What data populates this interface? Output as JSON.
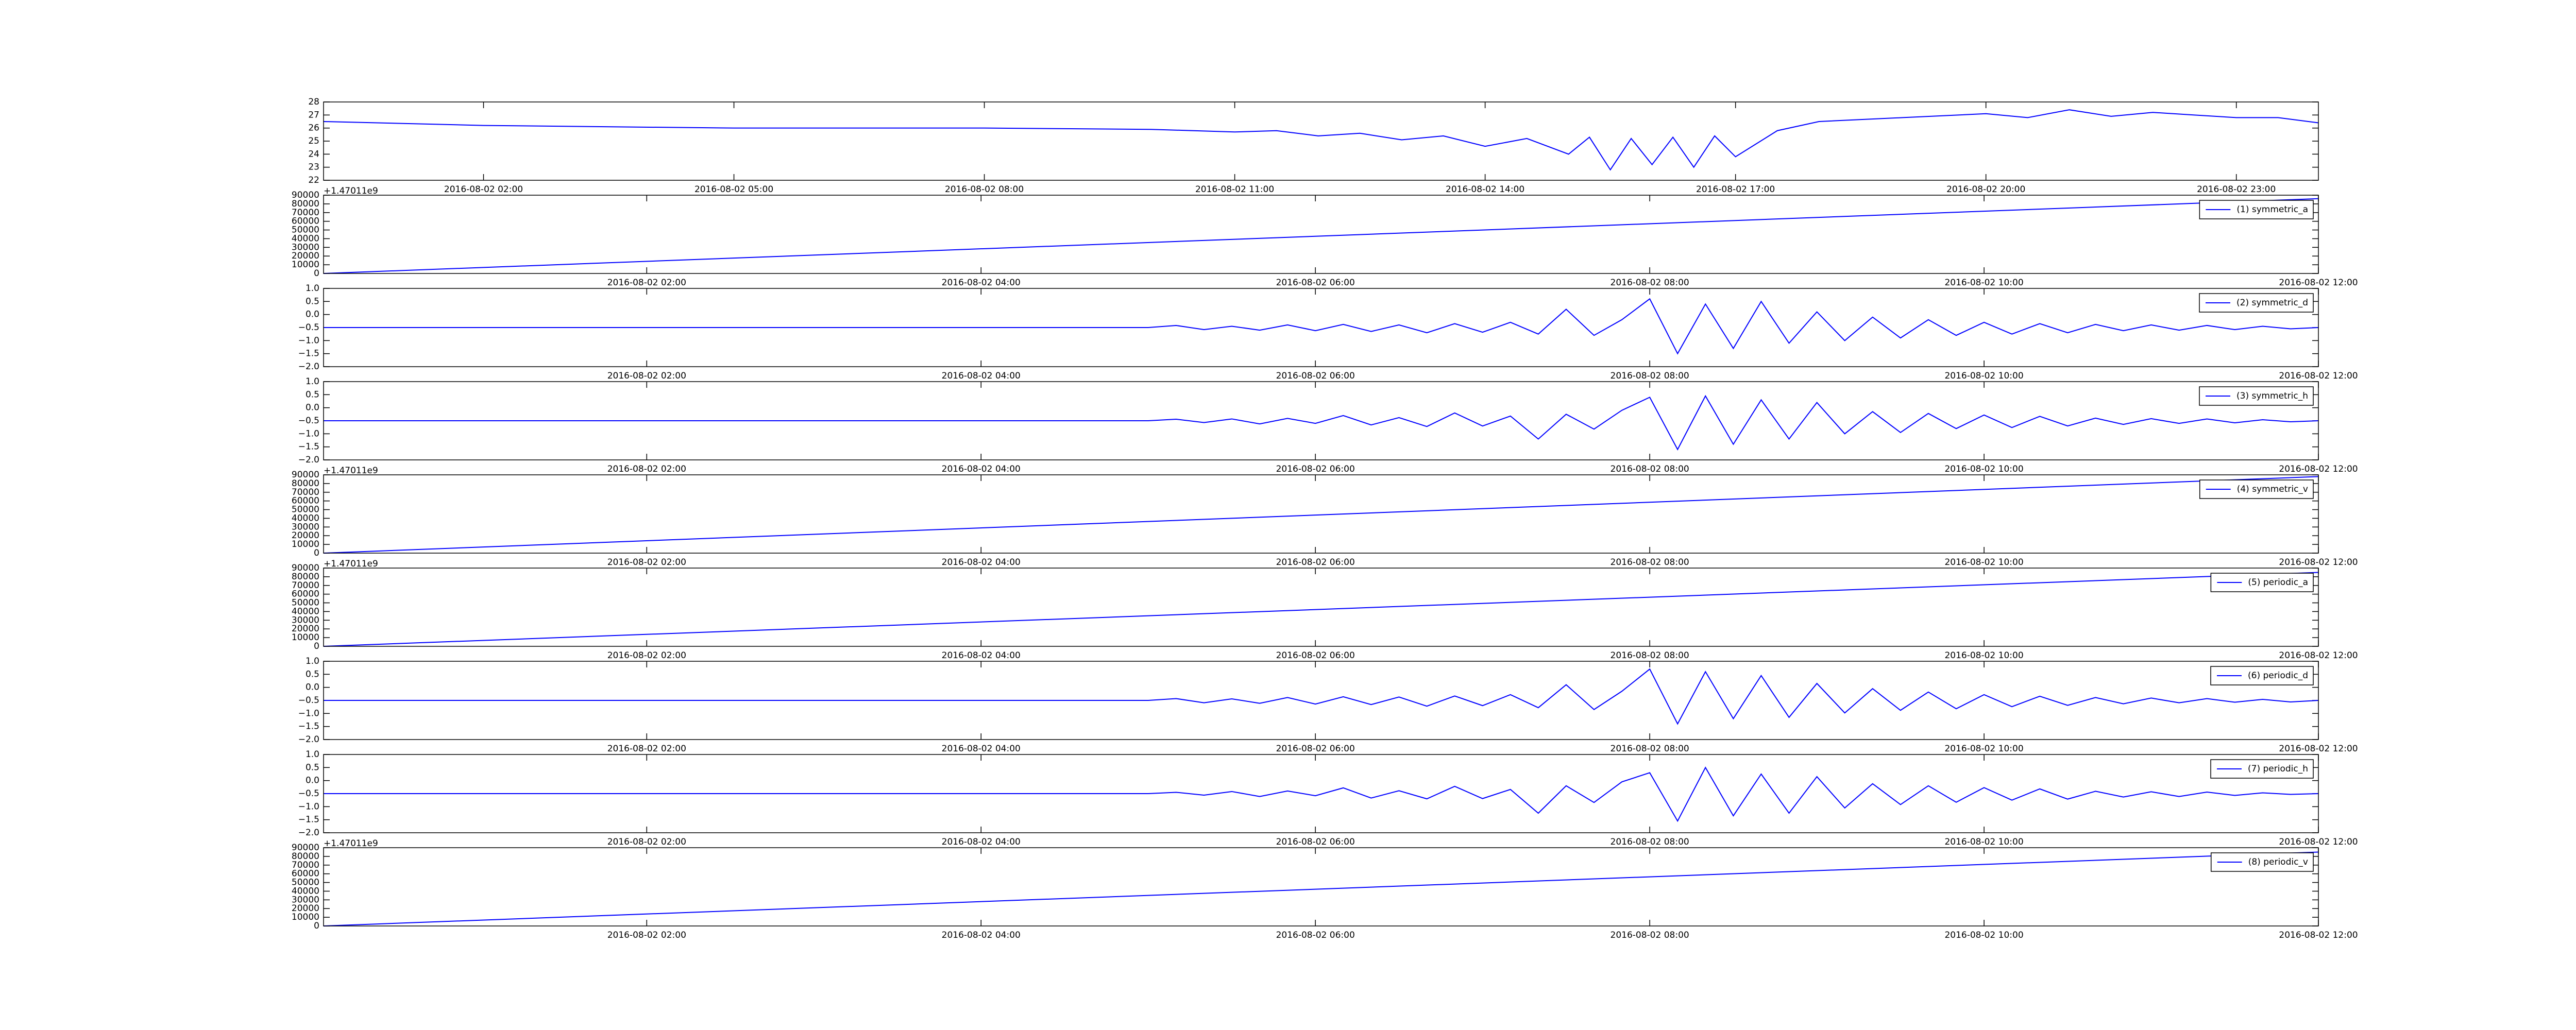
{
  "chart_data": [
    {
      "type": "line",
      "color": "#0000ff",
      "x": [
        "2016-08-02 00:05",
        "2016-08-02 02:00",
        "2016-08-02 05:00",
        "2016-08-02 08:00",
        "2016-08-02 10:00",
        "2016-08-02 11:00",
        "2016-08-02 11:30",
        "2016-08-02 12:00",
        "2016-08-02 12:30",
        "2016-08-02 13:00",
        "2016-08-02 13:30",
        "2016-08-02 14:00",
        "2016-08-02 14:30",
        "2016-08-02 15:00",
        "2016-08-02 15:15",
        "2016-08-02 15:30",
        "2016-08-02 15:45",
        "2016-08-02 16:00",
        "2016-08-02 16:15",
        "2016-08-02 16:30",
        "2016-08-02 16:45",
        "2016-08-02 17:00",
        "2016-08-02 17:30",
        "2016-08-02 18:00",
        "2016-08-02 19:00",
        "2016-08-02 20:00",
        "2016-08-02 20:30",
        "2016-08-02 21:00",
        "2016-08-02 21:30",
        "2016-08-02 22:00",
        "2016-08-02 22:30",
        "2016-08-02 23:00",
        "2016-08-02 23:30",
        "2016-08-02 23:59"
      ],
      "values": [
        26.5,
        26.2,
        26.0,
        26.0,
        25.9,
        25.7,
        25.8,
        25.4,
        25.6,
        25.1,
        25.4,
        24.6,
        25.2,
        24.0,
        25.3,
        22.8,
        25.2,
        23.2,
        25.3,
        23.0,
        25.4,
        23.8,
        25.8,
        26.5,
        26.8,
        27.1,
        26.8,
        27.4,
        26.9,
        27.2,
        27.0,
        26.8,
        26.8,
        26.4
      ],
      "xlim": [
        "2016-08-02 00:05",
        "2016-08-02 23:59"
      ],
      "xticks": [
        "2016-08-02 02:00",
        "2016-08-02 05:00",
        "2016-08-02 08:00",
        "2016-08-02 11:00",
        "2016-08-02 14:00",
        "2016-08-02 17:00",
        "2016-08-02 20:00",
        "2016-08-02 23:00"
      ],
      "ylim": [
        22,
        28
      ],
      "yticks": [
        22,
        23,
        24,
        25,
        26,
        27,
        28
      ]
    },
    {
      "type": "line",
      "offset_text": "+1.47011e9",
      "legend": "upper right",
      "x": [
        "2016-08-02 00:04",
        "2016-08-02 12:00"
      ],
      "series": [
        {
          "name": "(1) symmetric_a",
          "color": "#0000ff",
          "values": [
            0,
            86000
          ]
        }
      ],
      "xlim": [
        "2016-08-02 00:04",
        "2016-08-02 12:00"
      ],
      "xticks": [
        "2016-08-02 02:00",
        "2016-08-02 04:00",
        "2016-08-02 06:00",
        "2016-08-02 08:00",
        "2016-08-02 10:00",
        "2016-08-02 12:00"
      ],
      "ylim": [
        0,
        90000
      ],
      "yticks": [
        0,
        10000,
        20000,
        30000,
        40000,
        50000,
        60000,
        70000,
        80000,
        90000
      ]
    },
    {
      "type": "line",
      "legend": "upper right",
      "x": [
        "2016-08-02 00:04",
        "2016-08-02 05:00",
        "2016-08-02 05:10",
        "2016-08-02 05:20",
        "2016-08-02 05:30",
        "2016-08-02 05:40",
        "2016-08-02 05:50",
        "2016-08-02 06:00",
        "2016-08-02 06:10",
        "2016-08-02 06:20",
        "2016-08-02 06:30",
        "2016-08-02 06:40",
        "2016-08-02 06:50",
        "2016-08-02 07:00",
        "2016-08-02 07:10",
        "2016-08-02 07:20",
        "2016-08-02 07:30",
        "2016-08-02 07:40",
        "2016-08-02 07:50",
        "2016-08-02 08:00",
        "2016-08-02 08:10",
        "2016-08-02 08:20",
        "2016-08-02 08:30",
        "2016-08-02 08:40",
        "2016-08-02 08:50",
        "2016-08-02 09:00",
        "2016-08-02 09:10",
        "2016-08-02 09:20",
        "2016-08-02 09:30",
        "2016-08-02 09:40",
        "2016-08-02 09:50",
        "2016-08-02 10:00",
        "2016-08-02 10:10",
        "2016-08-02 10:20",
        "2016-08-02 10:30",
        "2016-08-02 10:40",
        "2016-08-02 10:50",
        "2016-08-02 11:00",
        "2016-08-02 11:10",
        "2016-08-02 11:20",
        "2016-08-02 11:30",
        "2016-08-02 11:40",
        "2016-08-02 11:50",
        "2016-08-02 12:00"
      ],
      "series": [
        {
          "name": "(2) symmetric_d",
          "color": "#0000ff",
          "values": [
            -0.5,
            -0.5,
            -0.42,
            -0.58,
            -0.45,
            -0.6,
            -0.4,
            -0.62,
            -0.38,
            -0.65,
            -0.4,
            -0.7,
            -0.35,
            -0.68,
            -0.3,
            -0.75,
            0.2,
            -0.8,
            -0.2,
            0.6,
            -1.5,
            0.4,
            -1.3,
            0.5,
            -1.1,
            0.1,
            -1.0,
            -0.1,
            -0.9,
            -0.2,
            -0.8,
            -0.3,
            -0.75,
            -0.35,
            -0.7,
            -0.38,
            -0.62,
            -0.4,
            -0.6,
            -0.42,
            -0.58,
            -0.45,
            -0.55,
            -0.5
          ]
        }
      ],
      "xlim": [
        "2016-08-02 00:04",
        "2016-08-02 12:00"
      ],
      "xticks": [
        "2016-08-02 02:00",
        "2016-08-02 04:00",
        "2016-08-02 06:00",
        "2016-08-02 08:00",
        "2016-08-02 10:00",
        "2016-08-02 12:00"
      ],
      "ylim": [
        -2,
        1
      ],
      "yticks": [
        {
          "value": -2,
          "label": "−2.0"
        },
        {
          "value": -1.5,
          "label": "−1.5"
        },
        {
          "value": -1,
          "label": "−1.0"
        },
        {
          "value": -0.5,
          "label": "−0.5"
        },
        {
          "value": 0,
          "label": "0.0"
        },
        0.5,
        {
          "value": 1,
          "label": "1.0"
        }
      ]
    },
    {
      "type": "line",
      "legend": "upper right",
      "x": [
        "2016-08-02 00:04",
        "2016-08-02 05:00",
        "2016-08-02 05:10",
        "2016-08-02 05:20",
        "2016-08-02 05:30",
        "2016-08-02 05:40",
        "2016-08-02 05:50",
        "2016-08-02 06:00",
        "2016-08-02 06:10",
        "2016-08-02 06:20",
        "2016-08-02 06:30",
        "2016-08-02 06:40",
        "2016-08-02 06:50",
        "2016-08-02 07:00",
        "2016-08-02 07:10",
        "2016-08-02 07:20",
        "2016-08-02 07:30",
        "2016-08-02 07:40",
        "2016-08-02 07:50",
        "2016-08-02 08:00",
        "2016-08-02 08:10",
        "2016-08-02 08:20",
        "2016-08-02 08:30",
        "2016-08-02 08:40",
        "2016-08-02 08:50",
        "2016-08-02 09:00",
        "2016-08-02 09:10",
        "2016-08-02 09:20",
        "2016-08-02 09:30",
        "2016-08-02 09:40",
        "2016-08-02 09:50",
        "2016-08-02 10:00",
        "2016-08-02 10:10",
        "2016-08-02 10:20",
        "2016-08-02 10:30",
        "2016-08-02 10:40",
        "2016-08-02 10:50",
        "2016-08-02 11:00",
        "2016-08-02 11:10",
        "2016-08-02 11:20",
        "2016-08-02 11:30",
        "2016-08-02 11:40",
        "2016-08-02 11:50",
        "2016-08-02 12:00"
      ],
      "series": [
        {
          "name": "(3) symmetric_h",
          "color": "#0000ff",
          "values": [
            -0.5,
            -0.5,
            -0.44,
            -0.57,
            -0.43,
            -0.62,
            -0.41,
            -0.6,
            -0.3,
            -0.66,
            -0.38,
            -0.72,
            -0.2,
            -0.7,
            -0.32,
            -1.2,
            -0.25,
            -0.82,
            -0.1,
            0.4,
            -1.6,
            0.45,
            -1.4,
            0.3,
            -1.2,
            0.2,
            -1.0,
            -0.15,
            -0.95,
            -0.22,
            -0.8,
            -0.28,
            -0.76,
            -0.33,
            -0.7,
            -0.4,
            -0.64,
            -0.42,
            -0.6,
            -0.43,
            -0.58,
            -0.46,
            -0.54,
            -0.5
          ]
        }
      ],
      "xlim": [
        "2016-08-02 00:04",
        "2016-08-02 12:00"
      ],
      "xticks": [
        "2016-08-02 02:00",
        "2016-08-02 04:00",
        "2016-08-02 06:00",
        "2016-08-02 08:00",
        "2016-08-02 10:00",
        "2016-08-02 12:00"
      ],
      "ylim": [
        -2,
        1
      ],
      "yticks": [
        {
          "value": -2,
          "label": "−2.0"
        },
        {
          "value": -1.5,
          "label": "−1.5"
        },
        {
          "value": -1,
          "label": "−1.0"
        },
        {
          "value": -0.5,
          "label": "−0.5"
        },
        {
          "value": 0,
          "label": "0.0"
        },
        0.5,
        {
          "value": 1,
          "label": "1.0"
        }
      ]
    },
    {
      "type": "line",
      "offset_text": "+1.47011e9",
      "legend": "upper right",
      "x": [
        "2016-08-02 00:04",
        "2016-08-02 12:00"
      ],
      "series": [
        {
          "name": "(4) symmetric_v",
          "color": "#0000ff",
          "values": [
            0,
            88000
          ]
        }
      ],
      "xlim": [
        "2016-08-02 00:04",
        "2016-08-02 12:00"
      ],
      "xticks": [
        "2016-08-02 02:00",
        "2016-08-02 04:00",
        "2016-08-02 06:00",
        "2016-08-02 08:00",
        "2016-08-02 10:00",
        "2016-08-02 12:00"
      ],
      "ylim": [
        0,
        90000
      ],
      "yticks": [
        0,
        10000,
        20000,
        30000,
        40000,
        50000,
        60000,
        70000,
        80000,
        90000
      ]
    },
    {
      "type": "line",
      "offset_text": "+1.47011e9",
      "legend": "upper right",
      "x": [
        "2016-08-02 00:04",
        "2016-08-02 12:00"
      ],
      "series": [
        {
          "name": "(5) periodic_a",
          "color": "#0000ff",
          "values": [
            0,
            85000
          ]
        }
      ],
      "xlim": [
        "2016-08-02 00:04",
        "2016-08-02 12:00"
      ],
      "xticks": [
        "2016-08-02 02:00",
        "2016-08-02 04:00",
        "2016-08-02 06:00",
        "2016-08-02 08:00",
        "2016-08-02 10:00",
        "2016-08-02 12:00"
      ],
      "ylim": [
        0,
        90000
      ],
      "yticks": [
        0,
        10000,
        20000,
        30000,
        40000,
        50000,
        60000,
        70000,
        80000,
        90000
      ]
    },
    {
      "type": "line",
      "legend": "upper right",
      "x": [
        "2016-08-02 00:04",
        "2016-08-02 05:00",
        "2016-08-02 05:10",
        "2016-08-02 05:20",
        "2016-08-02 05:30",
        "2016-08-02 05:40",
        "2016-08-02 05:50",
        "2016-08-02 06:00",
        "2016-08-02 06:10",
        "2016-08-02 06:20",
        "2016-08-02 06:30",
        "2016-08-02 06:40",
        "2016-08-02 06:50",
        "2016-08-02 07:00",
        "2016-08-02 07:10",
        "2016-08-02 07:20",
        "2016-08-02 07:30",
        "2016-08-02 07:40",
        "2016-08-02 07:50",
        "2016-08-02 08:00",
        "2016-08-02 08:10",
        "2016-08-02 08:20",
        "2016-08-02 08:30",
        "2016-08-02 08:40",
        "2016-08-02 08:50",
        "2016-08-02 09:00",
        "2016-08-02 09:10",
        "2016-08-02 09:20",
        "2016-08-02 09:30",
        "2016-08-02 09:40",
        "2016-08-02 09:50",
        "2016-08-02 10:00",
        "2016-08-02 10:10",
        "2016-08-02 10:20",
        "2016-08-02 10:30",
        "2016-08-02 10:40",
        "2016-08-02 10:50",
        "2016-08-02 11:00",
        "2016-08-02 11:10",
        "2016-08-02 11:20",
        "2016-08-02 11:30",
        "2016-08-02 11:40",
        "2016-08-02 11:50",
        "2016-08-02 12:00"
      ],
      "series": [
        {
          "name": "(6) periodic_d",
          "color": "#0000ff",
          "values": [
            -0.5,
            -0.5,
            -0.43,
            -0.59,
            -0.44,
            -0.61,
            -0.39,
            -0.64,
            -0.36,
            -0.66,
            -0.37,
            -0.72,
            -0.33,
            -0.7,
            -0.28,
            -0.78,
            0.1,
            -0.85,
            -0.15,
            0.7,
            -1.4,
            0.6,
            -1.2,
            0.45,
            -1.15,
            0.15,
            -0.98,
            -0.05,
            -0.88,
            -0.18,
            -0.82,
            -0.28,
            -0.74,
            -0.34,
            -0.69,
            -0.39,
            -0.63,
            -0.41,
            -0.59,
            -0.43,
            -0.57,
            -0.46,
            -0.56,
            -0.5
          ]
        }
      ],
      "xlim": [
        "2016-08-02 00:04",
        "2016-08-02 12:00"
      ],
      "xticks": [
        "2016-08-02 02:00",
        "2016-08-02 04:00",
        "2016-08-02 06:00",
        "2016-08-02 08:00",
        "2016-08-02 10:00",
        "2016-08-02 12:00"
      ],
      "ylim": [
        -2,
        1
      ],
      "yticks": [
        {
          "value": -2,
          "label": "−2.0"
        },
        {
          "value": -1.5,
          "label": "−1.5"
        },
        {
          "value": -1,
          "label": "−1.0"
        },
        {
          "value": -0.5,
          "label": "−0.5"
        },
        {
          "value": 0,
          "label": "0.0"
        },
        0.5,
        {
          "value": 1,
          "label": "1.0"
        }
      ]
    },
    {
      "type": "line",
      "legend": "upper right",
      "x": [
        "2016-08-02 00:04",
        "2016-08-02 05:00",
        "2016-08-02 05:10",
        "2016-08-02 05:20",
        "2016-08-02 05:30",
        "2016-08-02 05:40",
        "2016-08-02 05:50",
        "2016-08-02 06:00",
        "2016-08-02 06:10",
        "2016-08-02 06:20",
        "2016-08-02 06:30",
        "2016-08-02 06:40",
        "2016-08-02 06:50",
        "2016-08-02 07:00",
        "2016-08-02 07:10",
        "2016-08-02 07:20",
        "2016-08-02 07:30",
        "2016-08-02 07:40",
        "2016-08-02 07:50",
        "2016-08-02 08:00",
        "2016-08-02 08:10",
        "2016-08-02 08:20",
        "2016-08-02 08:30",
        "2016-08-02 08:40",
        "2016-08-02 08:50",
        "2016-08-02 09:00",
        "2016-08-02 09:10",
        "2016-08-02 09:20",
        "2016-08-02 09:30",
        "2016-08-02 09:40",
        "2016-08-02 09:50",
        "2016-08-02 10:00",
        "2016-08-02 10:10",
        "2016-08-02 10:20",
        "2016-08-02 10:30",
        "2016-08-02 10:40",
        "2016-08-02 10:50",
        "2016-08-02 11:00",
        "2016-08-02 11:10",
        "2016-08-02 11:20",
        "2016-08-02 11:30",
        "2016-08-02 11:40",
        "2016-08-02 11:50",
        "2016-08-02 12:00"
      ],
      "series": [
        {
          "name": "(7) periodic_h",
          "color": "#0000ff",
          "values": [
            -0.5,
            -0.5,
            -0.45,
            -0.56,
            -0.42,
            -0.61,
            -0.4,
            -0.58,
            -0.28,
            -0.67,
            -0.39,
            -0.7,
            -0.22,
            -0.69,
            -0.34,
            -1.25,
            -0.2,
            -0.84,
            -0.05,
            0.3,
            -1.55,
            0.5,
            -1.35,
            0.25,
            -1.25,
            0.15,
            -1.05,
            -0.12,
            -0.92,
            -0.2,
            -0.83,
            -0.27,
            -0.75,
            -0.32,
            -0.71,
            -0.41,
            -0.63,
            -0.43,
            -0.61,
            -0.44,
            -0.57,
            -0.47,
            -0.53,
            -0.5
          ]
        }
      ],
      "xlim": [
        "2016-08-02 00:04",
        "2016-08-02 12:00"
      ],
      "xticks": [
        "2016-08-02 02:00",
        "2016-08-02 04:00",
        "2016-08-02 06:00",
        "2016-08-02 08:00",
        "2016-08-02 10:00",
        "2016-08-02 12:00"
      ],
      "ylim": [
        -2,
        1
      ],
      "yticks": [
        {
          "value": -2,
          "label": "−2.0"
        },
        {
          "value": -1.5,
          "label": "−1.5"
        },
        {
          "value": -1,
          "label": "−1.0"
        },
        {
          "value": -0.5,
          "label": "−0.5"
        },
        {
          "value": 0,
          "label": "0.0"
        },
        0.5,
        {
          "value": 1,
          "label": "1.0"
        }
      ]
    },
    {
      "type": "line",
      "offset_text": "+1.47011e9",
      "legend": "upper right",
      "x": [
        "2016-08-02 00:04",
        "2016-08-02 12:00"
      ],
      "series": [
        {
          "name": "(8) periodic_v",
          "color": "#0000ff",
          "values": [
            0,
            85000
          ]
        }
      ],
      "xlim": [
        "2016-08-02 00:04",
        "2016-08-02 12:00"
      ],
      "xticks": [
        "2016-08-02 02:00",
        "2016-08-02 04:00",
        "2016-08-02 06:00",
        "2016-08-02 08:00",
        "2016-08-02 10:00",
        "2016-08-02 12:00"
      ],
      "ylim": [
        0,
        90000
      ],
      "yticks": [
        0,
        10000,
        20000,
        30000,
        40000,
        50000,
        60000,
        70000,
        80000,
        90000
      ]
    }
  ]
}
